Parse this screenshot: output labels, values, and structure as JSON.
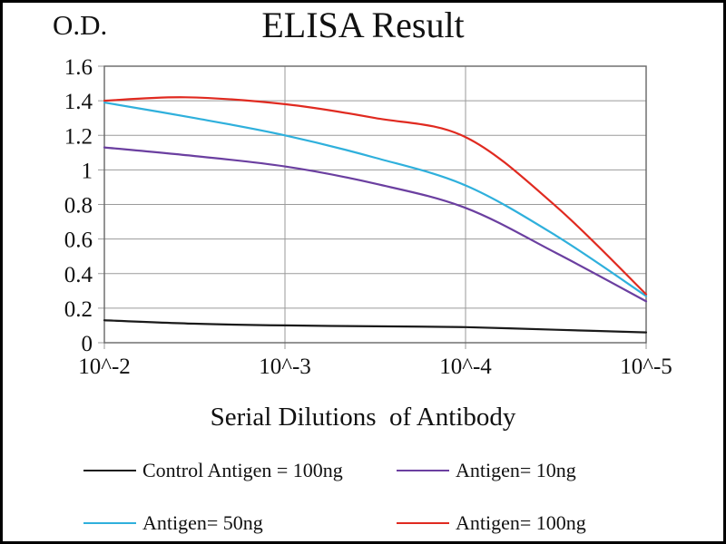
{
  "chart_data": {
    "type": "line",
    "title": "ELISA Result",
    "ylabel": "O.D.",
    "xlabel": "Serial Dilutions  of Antibody",
    "xlim": [
      0,
      3
    ],
    "ylim": [
      0,
      1.6
    ],
    "x_ticks": [
      0,
      1,
      2,
      3
    ],
    "x_tick_labels": [
      "10^-2",
      "10^-3",
      "10^-4",
      "10^-5"
    ],
    "y_ticks": [
      0,
      0.2,
      0.4,
      0.6,
      0.8,
      1,
      1.2,
      1.4,
      1.6
    ],
    "y_tick_labels": [
      "0",
      "0.2",
      "0.4",
      "0.6",
      "0.8",
      "1",
      "1.2",
      "1.4",
      "1.6"
    ],
    "grid": true,
    "legend_position": "bottom",
    "grid_color": "#9a9a9a",
    "axis_color": "#666666",
    "text_color": "#111111",
    "series": [
      {
        "name": "Control Antigen = 100ng",
        "color": "#1a1a1a",
        "x": [
          0,
          0.5,
          1,
          1.5,
          2,
          2.5,
          3
        ],
        "y": [
          0.13,
          0.11,
          0.1,
          0.095,
          0.09,
          0.075,
          0.06
        ]
      },
      {
        "name": "Antigen= 10ng",
        "color": "#6B3FA0",
        "x": [
          0,
          0.5,
          1,
          1.5,
          2,
          2.5,
          3
        ],
        "y": [
          1.13,
          1.08,
          1.02,
          0.92,
          0.78,
          0.52,
          0.24
        ]
      },
      {
        "name": "Antigen= 50ng",
        "color": "#2FB0DC",
        "x": [
          0,
          0.5,
          1,
          1.5,
          2,
          2.5,
          3
        ],
        "y": [
          1.39,
          1.3,
          1.2,
          1.07,
          0.91,
          0.62,
          0.27
        ]
      },
      {
        "name": "Antigen= 100ng",
        "color": "#E02A20",
        "x": [
          0,
          0.45,
          1,
          1.5,
          2,
          2.5,
          3
        ],
        "y": [
          1.4,
          1.42,
          1.38,
          1.3,
          1.19,
          0.79,
          0.28
        ]
      }
    ]
  }
}
